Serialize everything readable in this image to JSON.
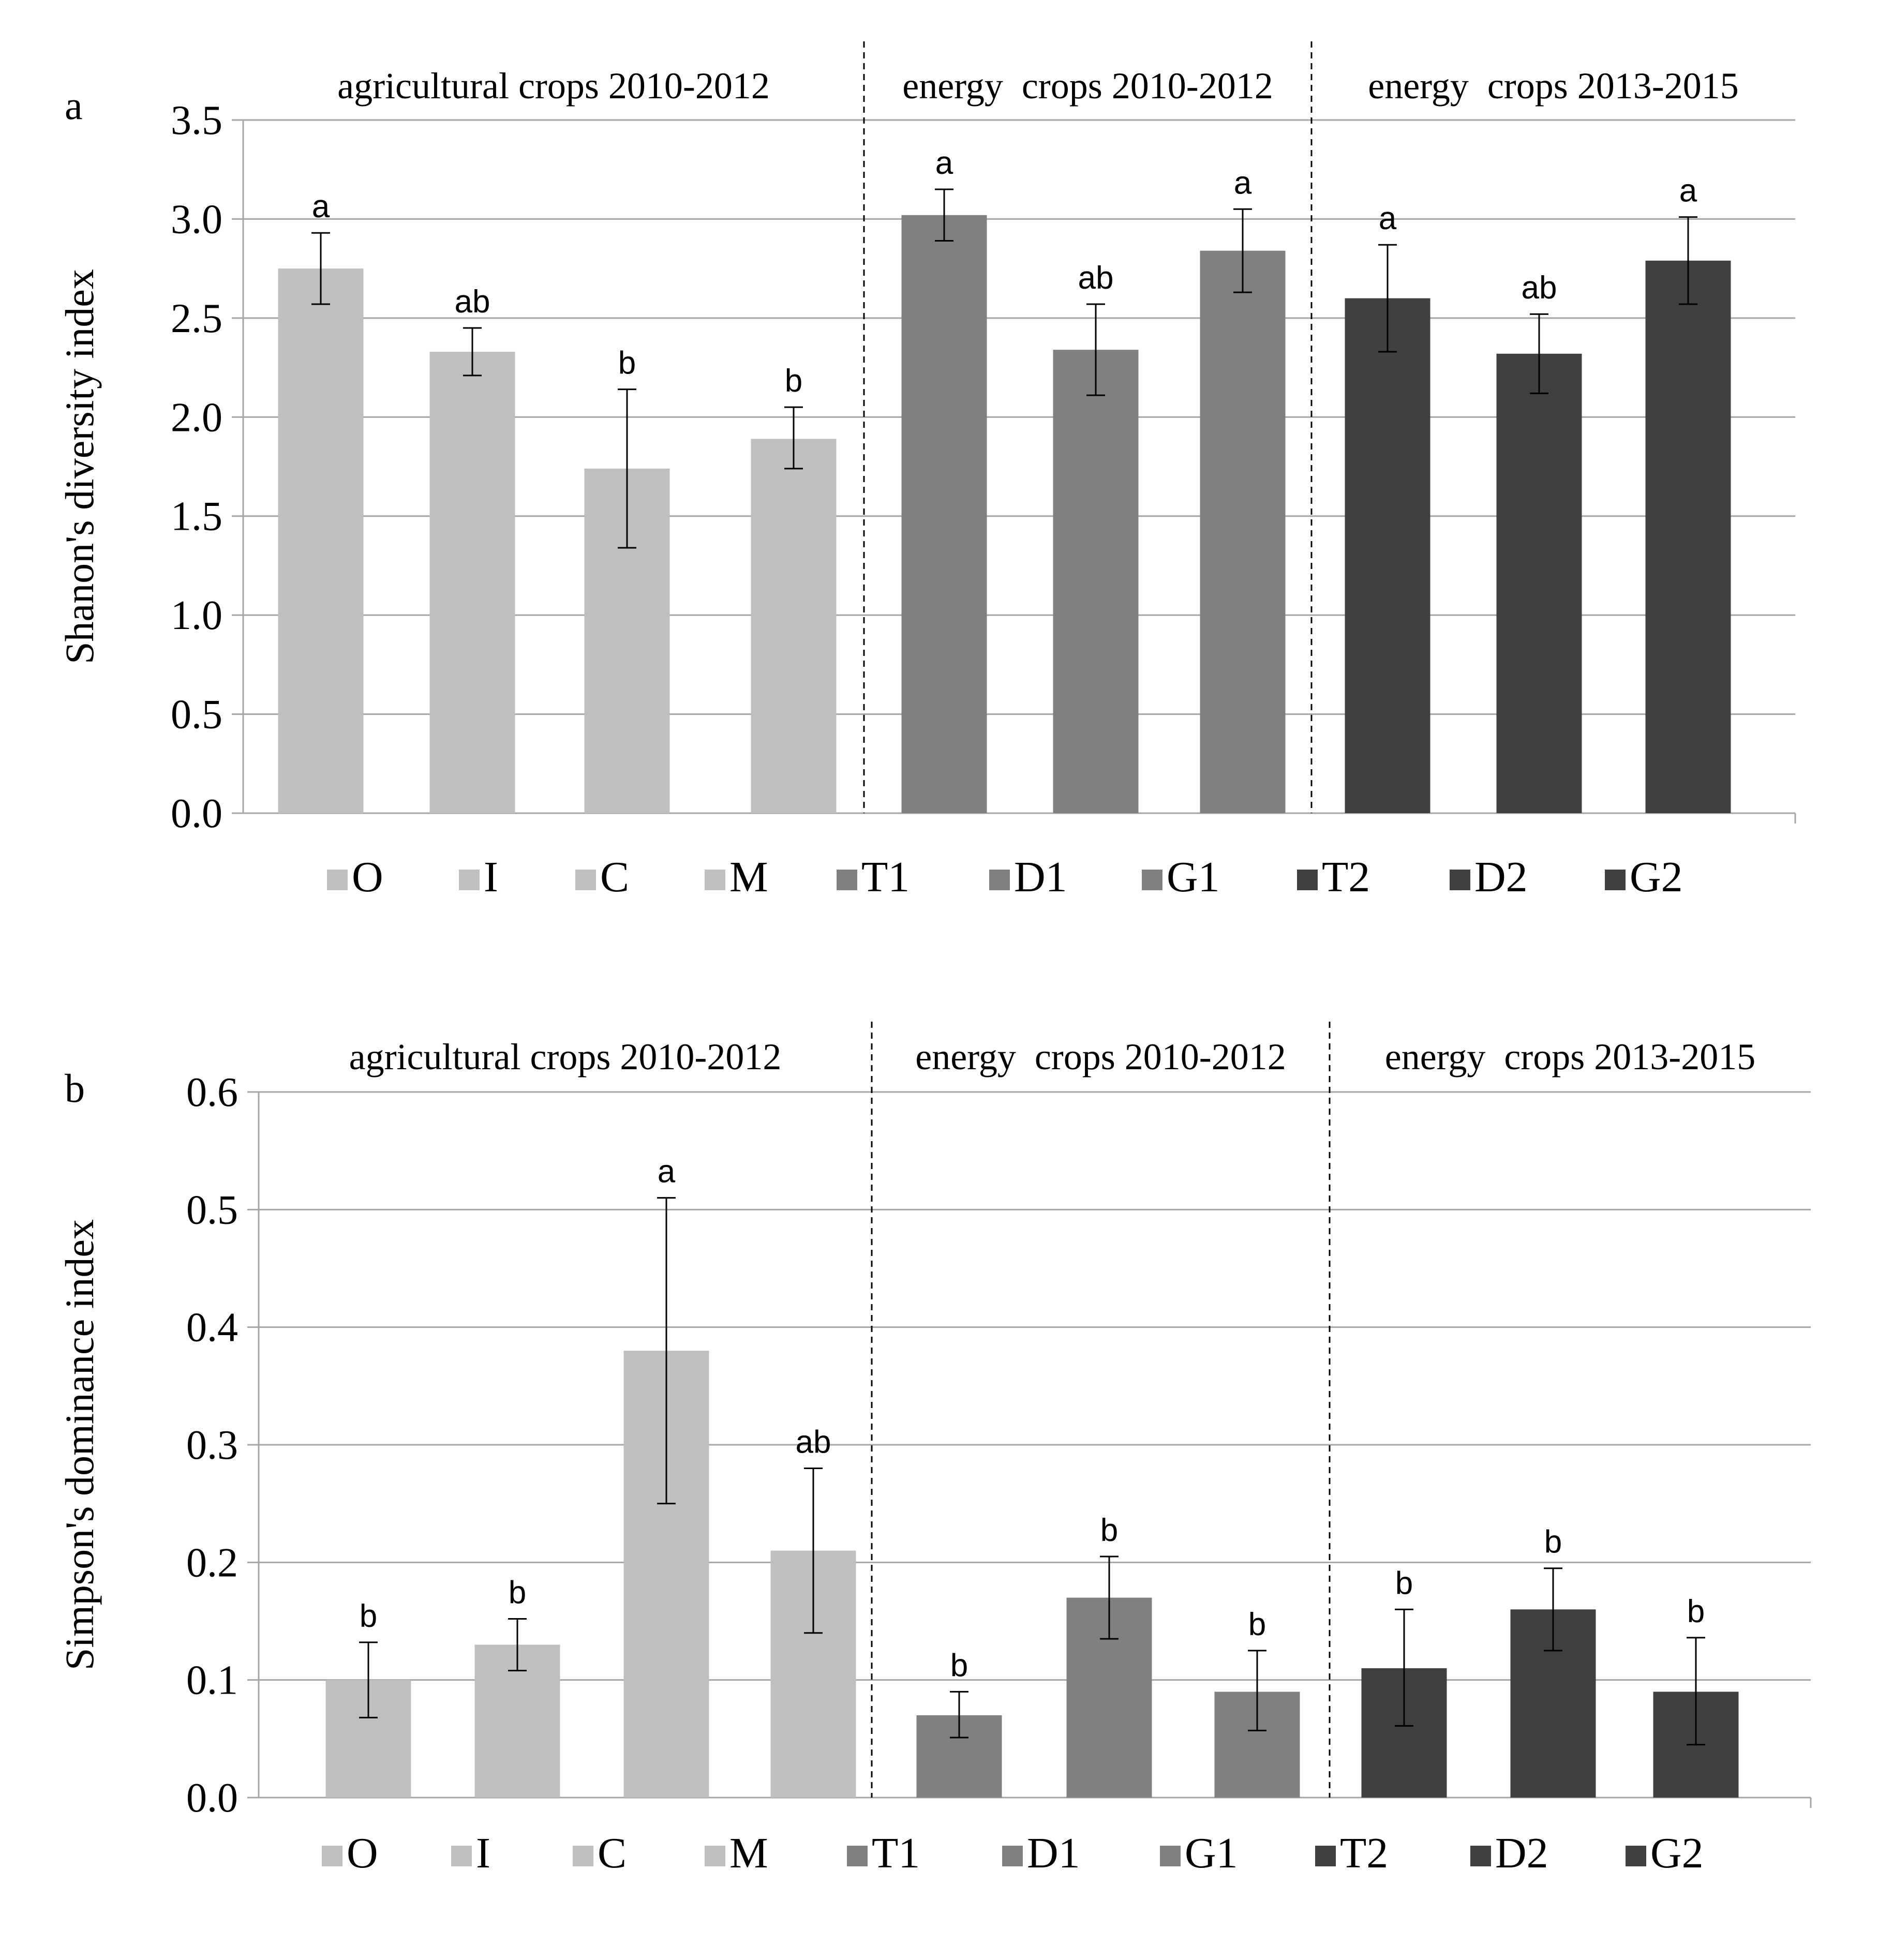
{
  "chart_data": [
    {
      "type": "bar",
      "panel": "a",
      "ylabel": "Shanon's diversity index",
      "ylim": [
        0,
        3.5
      ],
      "yticks": [
        "0.0",
        "0.5",
        "1.0",
        "1.5",
        "2.0",
        "2.5",
        "3.0",
        "3.5"
      ],
      "categories": [
        "O",
        "I",
        "C",
        "M",
        "T1",
        "D1",
        "G1",
        "T2",
        "D2",
        "G2"
      ],
      "values": [
        2.75,
        2.33,
        1.74,
        1.89,
        3.02,
        2.34,
        2.84,
        2.6,
        2.32,
        2.79
      ],
      "error_low": [
        2.57,
        2.21,
        1.34,
        1.74,
        2.89,
        2.11,
        2.63,
        2.33,
        2.12,
        2.57
      ],
      "error_high": [
        2.93,
        2.45,
        2.14,
        2.05,
        3.15,
        2.57,
        3.05,
        2.87,
        2.52,
        3.01
      ],
      "significance": [
        "a",
        "ab",
        "b",
        "b",
        "a",
        "ab",
        "a",
        "a",
        "ab",
        "a"
      ],
      "groups": [
        {
          "label": "agricultural crops 2010-2012",
          "members": [
            "O",
            "I",
            "C",
            "M"
          ],
          "color": "#bfbfbf"
        },
        {
          "label": "energy  crops 2010-2012",
          "members": [
            "T1",
            "D1",
            "G1"
          ],
          "color": "#808080"
        },
        {
          "label": "energy  crops 2013-2015",
          "members": [
            "T2",
            "D2",
            "G2"
          ],
          "color": "#404040"
        }
      ],
      "grid": true,
      "legend": "bottom"
    },
    {
      "type": "bar",
      "panel": "b",
      "ylabel": "Simpson's dominance index",
      "ylim": [
        0,
        0.6
      ],
      "yticks": [
        "0.0",
        "0.1",
        "0.2",
        "0.3",
        "0.4",
        "0.5",
        "0.6"
      ],
      "categories": [
        "O",
        "I",
        "C",
        "M",
        "T1",
        "D1",
        "G1",
        "T2",
        "D2",
        "G2"
      ],
      "values": [
        0.1,
        0.13,
        0.38,
        0.21,
        0.07,
        0.17,
        0.09,
        0.11,
        0.16,
        0.09
      ],
      "error_low": [
        0.068,
        0.108,
        0.25,
        0.14,
        0.051,
        0.135,
        0.057,
        0.061,
        0.125,
        0.045
      ],
      "error_high": [
        0.132,
        0.152,
        0.51,
        0.28,
        0.09,
        0.205,
        0.125,
        0.16,
        0.195,
        0.136
      ],
      "significance": [
        "b",
        "b",
        "a",
        "ab",
        "b",
        "b",
        "b",
        "b",
        "b",
        "b"
      ],
      "groups": [
        {
          "label": "agricultural crops 2010-2012",
          "members": [
            "O",
            "I",
            "C",
            "M"
          ],
          "color": "#bfbfbf"
        },
        {
          "label": "energy  crops 2010-2012",
          "members": [
            "T1",
            "D1",
            "G1"
          ],
          "color": "#808080"
        },
        {
          "label": "energy  crops 2013-2015",
          "members": [
            "T2",
            "D2",
            "G2"
          ],
          "color": "#404040"
        }
      ],
      "grid": true,
      "legend": "bottom"
    }
  ]
}
